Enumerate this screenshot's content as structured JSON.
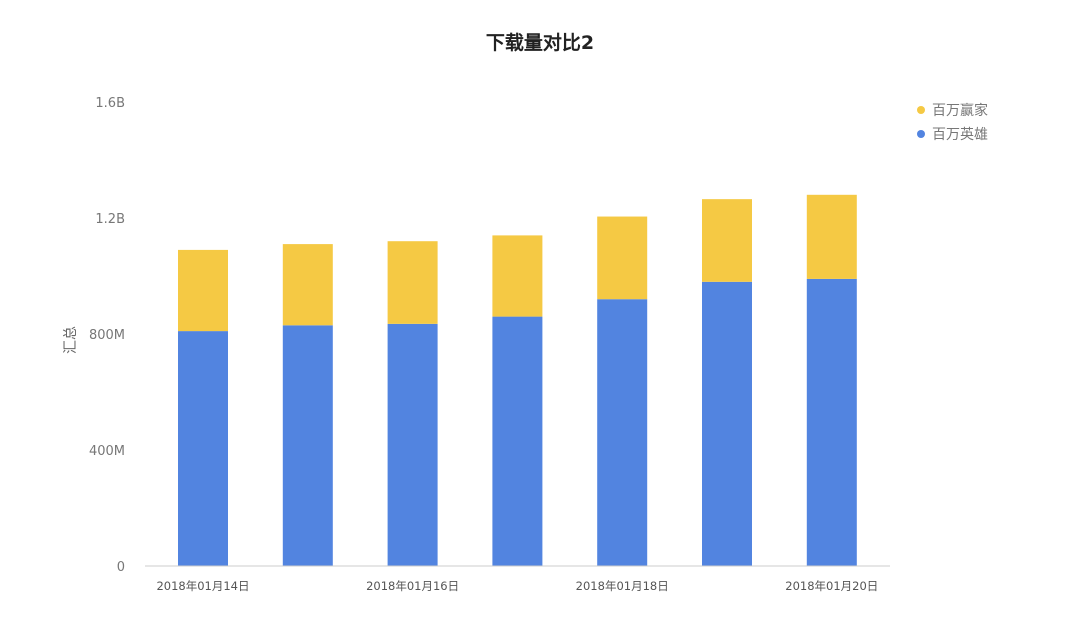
{
  "chart_data": {
    "type": "bar",
    "stacked": true,
    "title": "下载量对比2",
    "xlabel": "",
    "ylabel": "汇总",
    "x": [
      "2018-01-14",
      "2018-01-15",
      "2018-01-16",
      "2018-01-17",
      "2018-01-18",
      "2018-01-19",
      "2018-01-20"
    ],
    "x_tick_labels": [
      {
        "x": "2018-01-14",
        "label": "2018年01月14日"
      },
      {
        "x": "2018-01-16",
        "label": "2018年01月16日"
      },
      {
        "x": "2018-01-18",
        "label": "2018年01月18日"
      },
      {
        "x": "2018-01-20",
        "label": "2018年01月20日"
      }
    ],
    "y_ticks": [
      {
        "value": 0,
        "label": "0"
      },
      {
        "value": 400000000,
        "label": "400M"
      },
      {
        "value": 800000000,
        "label": "800M"
      },
      {
        "value": 1200000000,
        "label": "1.2B"
      },
      {
        "value": 1600000000,
        "label": "1.6B"
      }
    ],
    "ylim": [
      0,
      1600000000
    ],
    "grid": false,
    "legend_position": "top-right",
    "series": [
      {
        "name": "百万英雄",
        "color": "#5284e0",
        "values": [
          810000000,
          830000000,
          835000000,
          860000000,
          920000000,
          980000000,
          990000000
        ]
      },
      {
        "name": "百万赢家",
        "color": "#f5c944",
        "values": [
          280000000,
          280000000,
          285000000,
          280000000,
          285000000,
          285000000,
          290000000
        ]
      }
    ],
    "legend_order": [
      "百万赢家",
      "百万英雄"
    ]
  }
}
